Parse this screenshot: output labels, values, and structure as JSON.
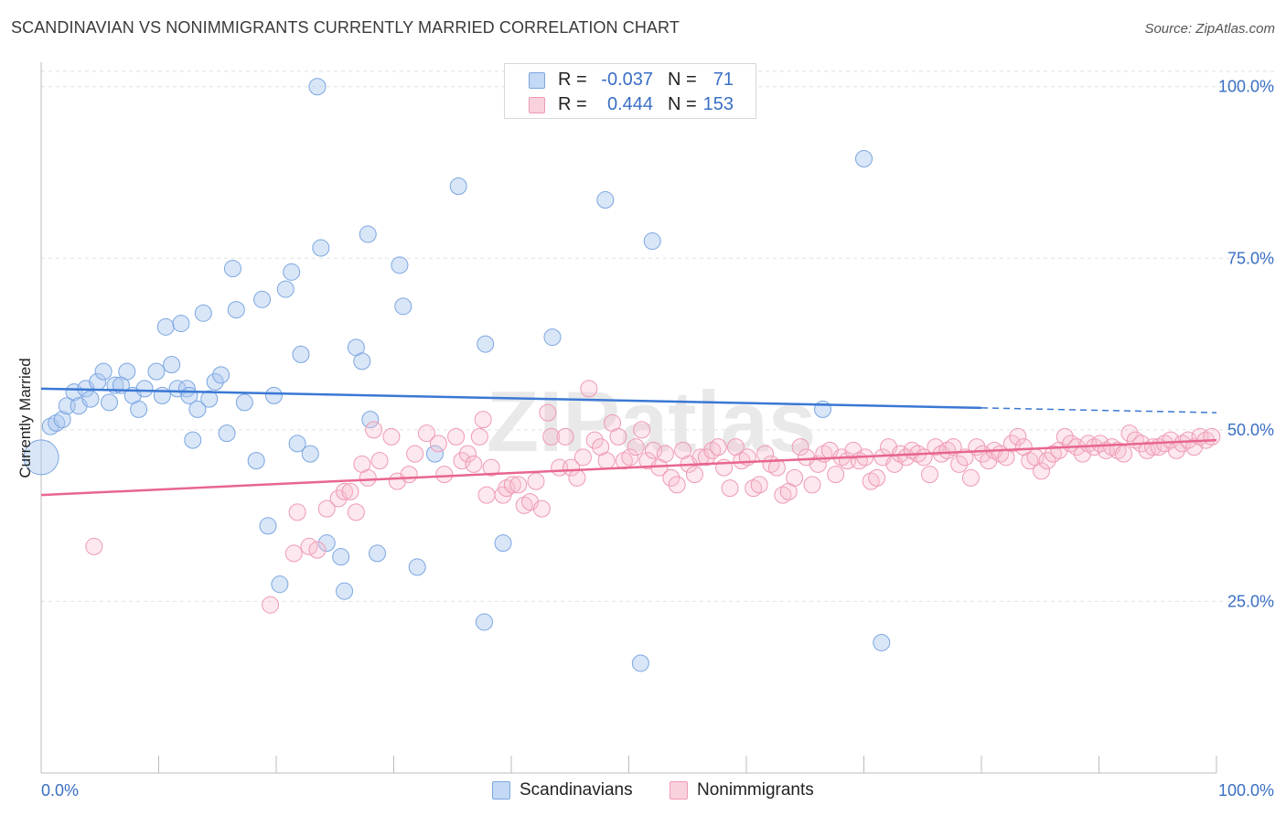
{
  "title": "SCANDINAVIAN VS NONIMMIGRANTS CURRENTLY MARRIED CORRELATION CHART",
  "source": "Source: ZipAtlas.com",
  "watermark": "ZIPatlas",
  "legend": {
    "rows": [
      {
        "swatch_color": "#aecbf1",
        "r_label": "R =",
        "r_value": "-0.037",
        "n_label": "N =",
        "n_value": "71"
      },
      {
        "swatch_color": "#f6bccd",
        "r_label": "R =",
        "r_value": "0.444",
        "n_label": "N =",
        "n_value": "153"
      }
    ]
  },
  "bottom_legend": [
    {
      "label": "Scandinavians",
      "color": "#aecbf1"
    },
    {
      "label": "Nonimmigrants",
      "color": "#f6bccd"
    }
  ],
  "colors": {
    "blue_fill": "rgba(170,200,240,0.45)",
    "blue_stroke": "#7ba6e0",
    "blue_line": "#3a78d4",
    "pink_fill": "rgba(246,188,205,0.35)",
    "pink_stroke": "#ef9ab5",
    "pink_line": "#e8668e",
    "tick_label": "#3a6fc4",
    "grid": "#e2e2e2"
  },
  "chart_data": {
    "type": "scatter",
    "title": "SCANDINAVIAN VS NONIMMIGRANTS CURRENTLY MARRIED CORRELATION CHART",
    "xlabel": "",
    "ylabel": "Currently Married",
    "xlim": [
      0,
      100
    ],
    "ylim": [
      0,
      105
    ],
    "x_tick_labels": [
      "0.0%",
      "100.0%"
    ],
    "y_ticks": [
      25,
      50,
      75,
      100
    ],
    "y_tick_labels": [
      "25.0%",
      "50.0%",
      "75.0%",
      "100.0%"
    ],
    "grid": "horizontal dashed",
    "series": [
      {
        "name": "Scandinavians",
        "r": -0.037,
        "n": 71,
        "trend": {
          "x0": 0,
          "y0": 56.0,
          "x1": 80,
          "y1": 53.2,
          "dashed_to": 100,
          "dashed_y": 52.5
        },
        "points": [
          [
            0,
            46
          ],
          [
            0.8,
            50.5
          ],
          [
            1.3,
            51
          ],
          [
            1.8,
            51.5
          ],
          [
            2.2,
            53.5
          ],
          [
            2.8,
            55.5
          ],
          [
            3.2,
            53.5
          ],
          [
            3.8,
            56
          ],
          [
            4.2,
            54.5
          ],
          [
            4.8,
            57
          ],
          [
            5.3,
            58.5
          ],
          [
            5.8,
            54
          ],
          [
            6.3,
            56.5
          ],
          [
            6.8,
            56.5
          ],
          [
            7.3,
            58.5
          ],
          [
            7.8,
            55
          ],
          [
            8.3,
            53
          ],
          [
            8.8,
            56
          ],
          [
            9.8,
            58.5
          ],
          [
            10.3,
            55
          ],
          [
            10.6,
            65
          ],
          [
            11.1,
            59.5
          ],
          [
            11.6,
            56
          ],
          [
            11.9,
            65.5
          ],
          [
            12.4,
            56
          ],
          [
            12.6,
            55
          ],
          [
            12.9,
            48.5
          ],
          [
            13.3,
            53
          ],
          [
            13.8,
            67
          ],
          [
            14.3,
            54.5
          ],
          [
            14.8,
            57
          ],
          [
            15.3,
            58
          ],
          [
            15.8,
            49.5
          ],
          [
            16.3,
            73.5
          ],
          [
            16.6,
            67.5
          ],
          [
            17.3,
            54
          ],
          [
            18.3,
            45.5
          ],
          [
            18.8,
            69
          ],
          [
            19.3,
            36
          ],
          [
            19.8,
            55
          ],
          [
            20.3,
            27.5
          ],
          [
            20.8,
            70.5
          ],
          [
            21.3,
            73
          ],
          [
            21.8,
            48
          ],
          [
            22.1,
            61
          ],
          [
            22.9,
            46.5
          ],
          [
            23.5,
            100
          ],
          [
            23.8,
            76.5
          ],
          [
            24.3,
            33.5
          ],
          [
            25.5,
            31.5
          ],
          [
            25.8,
            26.5
          ],
          [
            26.8,
            62
          ],
          [
            27.3,
            60
          ],
          [
            27.8,
            78.5
          ],
          [
            28.0,
            51.5
          ],
          [
            28.6,
            32
          ],
          [
            30.5,
            74
          ],
          [
            30.8,
            68
          ],
          [
            32.0,
            30
          ],
          [
            33.5,
            46.5
          ],
          [
            35.5,
            85.5
          ],
          [
            37.7,
            22
          ],
          [
            37.8,
            62.5
          ],
          [
            39.3,
            33.5
          ],
          [
            43.5,
            63.5
          ],
          [
            48.0,
            83.5
          ],
          [
            51.0,
            16
          ],
          [
            52.0,
            77.5
          ],
          [
            66.5,
            53
          ],
          [
            70.0,
            89.5
          ],
          [
            71.5,
            19
          ]
        ]
      },
      {
        "name": "Nonimmigrants",
        "r": 0.444,
        "n": 153,
        "trend": {
          "x0": 0,
          "y0": 40.5,
          "x1": 100,
          "y1": 48.5
        },
        "points": [
          [
            4.5,
            33
          ],
          [
            19.5,
            24.5
          ],
          [
            21.5,
            32
          ],
          [
            21.8,
            38
          ],
          [
            22.8,
            33
          ],
          [
            23.5,
            32.5
          ],
          [
            24.3,
            38.5
          ],
          [
            25.3,
            40
          ],
          [
            25.8,
            41
          ],
          [
            26.3,
            41
          ],
          [
            26.8,
            38
          ],
          [
            27.3,
            45
          ],
          [
            27.8,
            43
          ],
          [
            28.3,
            50
          ],
          [
            28.8,
            45.5
          ],
          [
            29.8,
            49
          ],
          [
            30.3,
            42.5
          ],
          [
            31.3,
            43.5
          ],
          [
            31.8,
            46.5
          ],
          [
            32.8,
            49.5
          ],
          [
            33.8,
            48
          ],
          [
            34.3,
            43.5
          ],
          [
            35.3,
            49
          ],
          [
            35.8,
            45.5
          ],
          [
            36.3,
            46.5
          ],
          [
            36.8,
            45
          ],
          [
            37.3,
            49
          ],
          [
            37.6,
            51.5
          ],
          [
            37.9,
            40.5
          ],
          [
            38.3,
            44.5
          ],
          [
            39.3,
            40.5
          ],
          [
            39.6,
            41.5
          ],
          [
            40.1,
            42
          ],
          [
            40.6,
            42
          ],
          [
            41.1,
            39
          ],
          [
            41.6,
            39.5
          ],
          [
            42.1,
            42.5
          ],
          [
            42.6,
            38.5
          ],
          [
            43.1,
            52.5
          ],
          [
            43.4,
            49
          ],
          [
            44.1,
            44.5
          ],
          [
            44.6,
            49
          ],
          [
            45.1,
            44.5
          ],
          [
            45.6,
            43
          ],
          [
            46.1,
            46
          ],
          [
            46.6,
            56
          ],
          [
            47.1,
            48.5
          ],
          [
            47.6,
            47.5
          ],
          [
            48.1,
            45.5
          ],
          [
            48.6,
            51
          ],
          [
            49.1,
            49
          ],
          [
            49.6,
            45.5
          ],
          [
            50.1,
            46
          ],
          [
            50.6,
            47.5
          ],
          [
            51.1,
            50
          ],
          [
            51.6,
            45.5
          ],
          [
            52.1,
            47
          ],
          [
            52.6,
            44.5
          ],
          [
            53.1,
            46.5
          ],
          [
            53.6,
            43
          ],
          [
            54.1,
            42
          ],
          [
            54.6,
            47
          ],
          [
            55.1,
            45
          ],
          [
            55.6,
            43.5
          ],
          [
            56.1,
            46
          ],
          [
            56.6,
            46
          ],
          [
            57.1,
            47
          ],
          [
            57.6,
            47.5
          ],
          [
            58.1,
            44.5
          ],
          [
            58.6,
            41.5
          ],
          [
            59.1,
            47.5
          ],
          [
            59.6,
            45.5
          ],
          [
            60.1,
            46
          ],
          [
            60.6,
            41.5
          ],
          [
            61.1,
            42
          ],
          [
            61.6,
            46.5
          ],
          [
            62.1,
            45
          ],
          [
            62.6,
            44.5
          ],
          [
            63.1,
            40.5
          ],
          [
            63.6,
            41
          ],
          [
            64.1,
            43
          ],
          [
            64.6,
            47.5
          ],
          [
            65.1,
            46
          ],
          [
            65.6,
            42
          ],
          [
            66.1,
            45
          ],
          [
            66.6,
            46.5
          ],
          [
            67.1,
            47
          ],
          [
            67.6,
            43.5
          ],
          [
            68.1,
            46
          ],
          [
            68.6,
            45.5
          ],
          [
            69.1,
            47
          ],
          [
            69.6,
            45.5
          ],
          [
            70.1,
            46
          ],
          [
            70.6,
            42.5
          ],
          [
            71.1,
            43
          ],
          [
            71.6,
            46
          ],
          [
            72.1,
            47.5
          ],
          [
            72.6,
            45
          ],
          [
            73.1,
            46.5
          ],
          [
            73.6,
            46
          ],
          [
            74.1,
            47
          ],
          [
            74.6,
            46.5
          ],
          [
            75.1,
            46
          ],
          [
            75.6,
            43.5
          ],
          [
            76.1,
            47.5
          ],
          [
            76.6,
            46.5
          ],
          [
            77.1,
            47
          ],
          [
            77.6,
            47.5
          ],
          [
            78.1,
            45
          ],
          [
            78.6,
            46
          ],
          [
            79.1,
            43
          ],
          [
            79.6,
            47.5
          ],
          [
            80.1,
            46.5
          ],
          [
            80.6,
            45.5
          ],
          [
            81.1,
            47
          ],
          [
            81.6,
            46.5
          ],
          [
            82.1,
            46
          ],
          [
            82.6,
            48
          ],
          [
            83.1,
            49
          ],
          [
            83.6,
            47.5
          ],
          [
            84.1,
            45.5
          ],
          [
            84.6,
            46
          ],
          [
            85.1,
            44
          ],
          [
            85.6,
            45.5
          ],
          [
            86.1,
            46.5
          ],
          [
            86.6,
            47
          ],
          [
            87.1,
            49
          ],
          [
            87.6,
            48
          ],
          [
            88.1,
            47.5
          ],
          [
            88.6,
            46.5
          ],
          [
            89.1,
            48
          ],
          [
            89.6,
            47.5
          ],
          [
            90.1,
            48
          ],
          [
            90.6,
            47
          ],
          [
            91.1,
            47.5
          ],
          [
            91.6,
            47
          ],
          [
            92.1,
            46.5
          ],
          [
            92.6,
            49.5
          ],
          [
            93.1,
            48.5
          ],
          [
            93.6,
            48
          ],
          [
            94.1,
            47
          ],
          [
            94.6,
            47.5
          ],
          [
            95.1,
            47.5
          ],
          [
            95.6,
            48
          ],
          [
            96.1,
            48.5
          ],
          [
            96.6,
            47
          ],
          [
            97.1,
            48
          ],
          [
            97.6,
            48.5
          ],
          [
            98.1,
            47.5
          ],
          [
            98.6,
            49
          ],
          [
            99.1,
            48.5
          ],
          [
            99.6,
            49
          ]
        ]
      }
    ]
  }
}
